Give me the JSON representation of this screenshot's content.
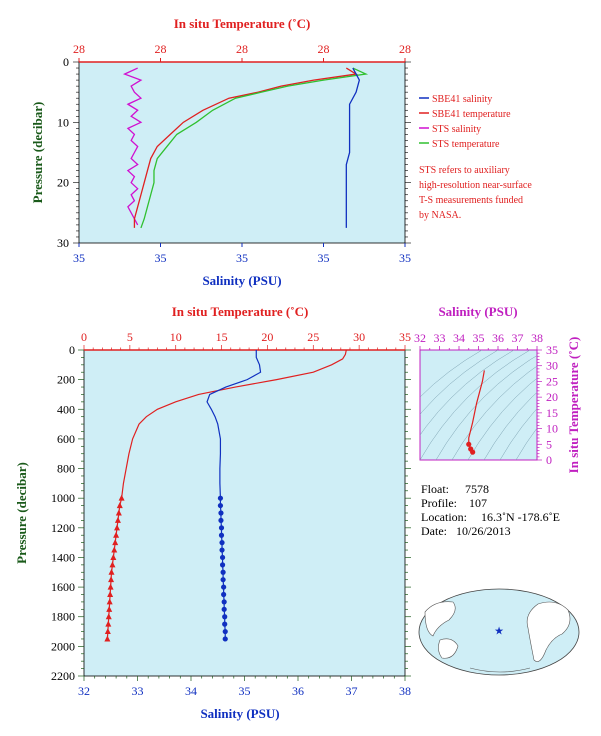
{
  "chart_data": [
    {
      "id": "upper",
      "type": "line",
      "top_axis_label": "In situ Temperature (˚C)",
      "top_ticks": [
        "28",
        "28",
        "28",
        "28",
        "28"
      ],
      "bottom_axis_label": "Salinity (PSU)",
      "bottom_ticks": [
        "35",
        "35",
        "35",
        "35",
        "35"
      ],
      "ylabel": "Pressure (decibar)",
      "y_ticks": [
        "0",
        "10",
        "20",
        "30"
      ],
      "ylim": [
        0,
        30
      ],
      "xlim_frac": [
        0,
        1
      ],
      "x_unit_note": "",
      "series": [
        {
          "key": "sts_salinity",
          "color": "#d010d0",
          "y": [
            1,
            2,
            3,
            4,
            5,
            6,
            7,
            8,
            9,
            10,
            11,
            12,
            13,
            14,
            15,
            16,
            17,
            18,
            19,
            20,
            21,
            22,
            23,
            24,
            25,
            26,
            27
          ],
          "x": [
            0.18,
            0.14,
            0.19,
            0.16,
            0.17,
            0.19,
            0.15,
            0.18,
            0.16,
            0.19,
            0.15,
            0.17,
            0.16,
            0.18,
            0.17,
            0.16,
            0.18,
            0.15,
            0.17,
            0.16,
            0.18,
            0.16,
            0.17,
            0.15,
            0.16,
            0.17,
            0.18
          ]
        },
        {
          "key": "sbe41_temperature",
          "color": "#e02020",
          "y": [
            1,
            2,
            3,
            4,
            5,
            6,
            8,
            10,
            12,
            14,
            16,
            18,
            20,
            22,
            24,
            26,
            27.5
          ],
          "x": [
            0.82,
            0.85,
            0.72,
            0.62,
            0.55,
            0.46,
            0.38,
            0.32,
            0.28,
            0.24,
            0.22,
            0.21,
            0.2,
            0.19,
            0.18,
            0.17,
            0.17
          ]
        },
        {
          "key": "sts_temperature",
          "color": "#30c030",
          "y": [
            1,
            2,
            3,
            4,
            5,
            6,
            8,
            10,
            12,
            14,
            16,
            18,
            20,
            22,
            24,
            26,
            27.5
          ],
          "x": [
            0.84,
            0.88,
            0.75,
            0.64,
            0.56,
            0.48,
            0.41,
            0.36,
            0.3,
            0.27,
            0.24,
            0.23,
            0.23,
            0.22,
            0.21,
            0.2,
            0.19
          ]
        },
        {
          "key": "sbe41_salinity",
          "color": "#1030c0",
          "y": [
            1,
            3,
            5,
            7,
            9,
            11,
            13,
            15,
            17,
            19,
            21,
            23,
            25,
            27.5
          ],
          "x": [
            0.84,
            0.86,
            0.85,
            0.83,
            0.83,
            0.83,
            0.83,
            0.83,
            0.82,
            0.82,
            0.82,
            0.82,
            0.82,
            0.82
          ]
        }
      ],
      "legend": [
        {
          "label": "SBE41 salinity",
          "color": "#1030c0"
        },
        {
          "label": "SBE41 temperature",
          "color": "#e02020"
        },
        {
          "label": "STS salinity",
          "color": "#d010d0"
        },
        {
          "label": "STS temperature",
          "color": "#30c030"
        }
      ],
      "note": [
        "STS refers to auxiliary",
        "high-resolution near-surface",
        "T-S measurements funded",
        "by NASA."
      ]
    },
    {
      "id": "lower",
      "type": "line",
      "top_axis_label": "In situ Temperature (˚C)",
      "top_ticks": [
        "0",
        "5",
        "10",
        "15",
        "20",
        "25",
        "30",
        "35"
      ],
      "temperature_range": [
        0,
        35
      ],
      "bottom_axis_label": "Salinity (PSU)",
      "bottom_ticks": [
        "32",
        "33",
        "34",
        "35",
        "36",
        "37",
        "38"
      ],
      "salinity_range": [
        32,
        38
      ],
      "ylabel": "Pressure (decibar)",
      "y_ticks": [
        "0",
        "200",
        "400",
        "600",
        "800",
        "1000",
        "1200",
        "1400",
        "1600",
        "1800",
        "2000",
        "2200"
      ],
      "ylim": [
        0,
        2200
      ],
      "temperature": {
        "color": "#e02020",
        "pressure": [
          0,
          30,
          60,
          100,
          150,
          200,
          250,
          300,
          350,
          400,
          450,
          500,
          600,
          700,
          800,
          900,
          1000,
          1050,
          1100,
          1150,
          1200,
          1250,
          1300,
          1350,
          1400,
          1450,
          1500,
          1550,
          1600,
          1650,
          1700,
          1750,
          1800,
          1850,
          1900,
          1950
        ],
        "value": [
          28.6,
          28.5,
          28.2,
          27.0,
          25.0,
          21.0,
          16.5,
          12.5,
          10.0,
          8.0,
          6.8,
          6.0,
          5.3,
          4.9,
          4.6,
          4.3,
          4.1,
          3.9,
          3.8,
          3.7,
          3.6,
          3.5,
          3.4,
          3.3,
          3.2,
          3.1,
          3.0,
          2.95,
          2.9,
          2.85,
          2.8,
          2.75,
          2.7,
          2.65,
          2.6,
          2.55
        ],
        "marker_from": 1000
      },
      "salinity": {
        "color": "#1030c0",
        "pressure": [
          0,
          50,
          100,
          150,
          200,
          250,
          300,
          350,
          400,
          450,
          500,
          600,
          700,
          800,
          900,
          1000,
          1050,
          1100,
          1150,
          1200,
          1250,
          1300,
          1350,
          1400,
          1450,
          1500,
          1550,
          1600,
          1650,
          1700,
          1750,
          1800,
          1850,
          1900,
          1950
        ],
        "value": [
          35.22,
          35.22,
          35.28,
          35.3,
          35.05,
          34.65,
          34.35,
          34.3,
          34.38,
          34.45,
          34.5,
          34.55,
          34.55,
          34.54,
          34.54,
          34.55,
          34.55,
          34.56,
          34.56,
          34.57,
          34.57,
          34.58,
          34.58,
          34.59,
          34.59,
          34.6,
          34.6,
          34.61,
          34.61,
          34.62,
          34.62,
          34.63,
          34.63,
          34.64,
          34.64
        ],
        "marker_from": 1000
      }
    },
    {
      "id": "ts",
      "type": "line",
      "top_axis_label": "Salinity (PSU)",
      "top_ticks": [
        "32",
        "33",
        "34",
        "35",
        "36",
        "37",
        "38"
      ],
      "salinity_range": [
        32,
        38
      ],
      "right_axis_label": "In situ Temperature (˚C)",
      "right_ticks": [
        "0",
        "5",
        "10",
        "15",
        "20",
        "25",
        "30",
        "35"
      ],
      "temperature_range": [
        0,
        35
      ],
      "points": {
        "salinity": [
          35.3,
          35.2,
          34.9,
          34.7,
          34.5,
          34.5,
          34.6,
          34.7
        ],
        "temperature": [
          28.5,
          25.0,
          18.0,
          12.0,
          7.0,
          5.0,
          3.5,
          2.5
        ]
      },
      "color": "#e02020"
    }
  ],
  "info": {
    "float_label": "Float:",
    "float_value": "7578",
    "profile_label": "Profile:",
    "profile_value": "107",
    "location_label": "Location:",
    "location_value": "16.3˚N  -178.6˚E",
    "date_label": "Date:",
    "date_value": "10/26/2013"
  },
  "colors": {
    "plot_bg": "#cfeef6",
    "temperature": "#e02020",
    "salinity": "#1030c0",
    "sts_salinity": "#d010d0",
    "sts_temperature": "#30c030",
    "axis_green": "#1a5a1a",
    "ts_magenta": "#c020c0"
  }
}
